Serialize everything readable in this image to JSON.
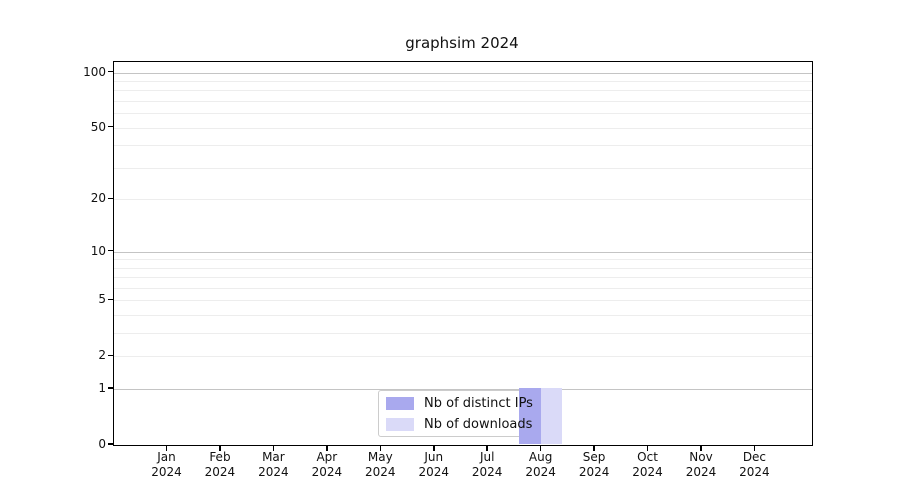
{
  "title": "graphsim 2024",
  "legend": {
    "items": [
      {
        "label": "Nb of distinct IPs",
        "color": "#a9a9ee"
      },
      {
        "label": "Nb of downloads",
        "color": "#dadaf8"
      }
    ]
  },
  "chart_data": {
    "type": "bar",
    "title": "graphsim 2024",
    "categories": [
      "Jan",
      "Feb",
      "Mar",
      "Apr",
      "May",
      "Jun",
      "Jul",
      "Aug",
      "Sep",
      "Oct",
      "Nov",
      "Dec"
    ],
    "category_year": "2024",
    "series": [
      {
        "name": "Nb of distinct IPs",
        "color": "#a9a9ee",
        "values": [
          0,
          0,
          0,
          0,
          0,
          0,
          0,
          1,
          0,
          0,
          0,
          0
        ]
      },
      {
        "name": "Nb of downloads",
        "color": "#dadaf8",
        "values": [
          0,
          0,
          0,
          0,
          0,
          0,
          0,
          1,
          0,
          0,
          0,
          0
        ]
      }
    ],
    "yscale": "log(value+1)",
    "ylim": [
      0,
      114
    ],
    "ytick_labels": [
      "0",
      "1",
      "2",
      "5",
      "10",
      "20",
      "50",
      "100"
    ],
    "yticks": [
      0,
      1,
      2,
      5,
      10,
      20,
      50,
      100
    ],
    "major_gridlines": [
      1,
      10,
      100
    ],
    "minor_gridlines": [
      2,
      3,
      4,
      5,
      6,
      7,
      8,
      9,
      20,
      30,
      40,
      50,
      60,
      70,
      80,
      90
    ],
    "grid": true,
    "legend_position": "lower center",
    "colors": {
      "spine": "#000000",
      "major_grid": "#c4c4c4",
      "minor_grid": "#ededed",
      "background": "#ffffff"
    }
  }
}
